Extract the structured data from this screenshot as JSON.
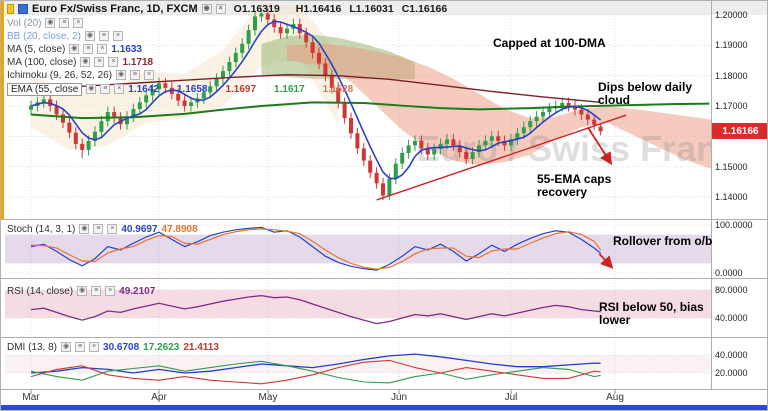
{
  "title_row": {
    "symbol_title": "Euro Fx/Swiss Franc, 1D, FXCM",
    "ohlc": {
      "o": "O1.16319",
      "h": "H1.16416",
      "l": "L1.16031",
      "c": "C1.16166"
    }
  },
  "ui": {
    "buttons": [
      "◉",
      "≡",
      "×"
    ]
  },
  "legend": {
    "vol": {
      "label": "Vol (20)"
    },
    "bb": {
      "label": "BB (20, close, 2)"
    },
    "ma5": {
      "label": "MA (5, close)",
      "value": "1.1633"
    },
    "ma100": {
      "label": "MA (100, close)",
      "value": "1.1718"
    },
    "ichimoku": {
      "label": "Ichimoku (9, 26, 52, 26)",
      "values": [
        "1.1658",
        "1.1697",
        "1.1617",
        "1.1628"
      ]
    },
    "ema55": {
      "label": "EMA (55, close",
      "value": "1.1642"
    }
  },
  "panels": {
    "stoch": {
      "label": "Stoch (14, 3, 1)",
      "values": [
        "40.9697",
        "47.8908"
      ],
      "axis": [
        "100.0000",
        "0.0000"
      ]
    },
    "rsi": {
      "label": "RSI (14, close)",
      "values": [
        "49.2107"
      ],
      "axis": [
        "80.0000",
        "40.0000"
      ]
    },
    "dmi": {
      "label": "DMI (13, 8)",
      "values": [
        "30.6708",
        "17.2623",
        "21.4113"
      ],
      "axis": [
        "40.0000",
        "20.0000"
      ]
    }
  },
  "price_axis": {
    "labels": [
      "1.20000",
      "1.19000",
      "1.18000",
      "1.17000",
      "1.16000",
      "1.15000",
      "1.14000"
    ],
    "values": [
      1.2,
      1.19,
      1.18,
      1.17,
      1.16,
      1.15,
      1.14
    ],
    "last_price": "1.16166"
  },
  "time_axis": {
    "months": [
      "Mar",
      "Apr",
      "May",
      "Jun",
      "Jul",
      "Aug"
    ]
  },
  "watermark": "Euro / Swiss Franc",
  "annotations": [
    {
      "text": "Capped at 100-DMA"
    },
    {
      "text": "Dips below daily cloud"
    },
    {
      "text": "55-EMA caps recovery"
    },
    {
      "text": "Rollover from o/b"
    },
    {
      "text": "RSI below 50, bias lower"
    }
  ],
  "colors": {
    "up": "#2e9e4a",
    "down": "#d23535",
    "ma5": "#2743c7",
    "ma100": "#7a1f2b",
    "senkou": "#1d7a1d",
    "trend": "#cc2222",
    "stoch_k": "#2743c7",
    "stoch_d": "#e8742c",
    "rsi": "#7b2d8b",
    "adx": "#2140c8",
    "pdi": "#2e9e4a",
    "mdi": "#d23535",
    "badge": "#d92b2b",
    "bottom_bar": "#2a49d6",
    "left_strip": "#f0a500",
    "stoch_band": "rgba(186,156,206,0.38)",
    "rsi_band": "rgba(233,178,190,0.45)",
    "dmi_band": "rgba(235,205,210,0.28)",
    "cloud_pink_fill": "rgba(238,152,126,0.5)",
    "cloud_green_fill": "rgba(148,176,108,0.5)",
    "bb_fill": "rgba(243,226,198,0.45)",
    "grid": "#dcdcdc",
    "val_blue": "#2743c7",
    "val_red": "#c0392b",
    "val_green": "#2e9e4a",
    "val_salmon": "#e07050",
    "val_purple": "#7b2d8b",
    "val_orange": "#e8742c",
    "val_maroon": "#8b2635"
  },
  "chart_data": {
    "type": "candlestick",
    "title": "Euro Fx/Swiss Franc, 1D, FXCM",
    "ylim": [
      1.14,
      1.2
    ],
    "x_months": [
      "Mar",
      "Apr",
      "May",
      "Jun",
      "Jul",
      "Aug"
    ],
    "candles": [
      [
        1.1688,
        1.1718,
        1.167,
        1.17
      ],
      [
        1.17,
        1.173,
        1.1682,
        1.1712
      ],
      [
        1.1712,
        1.174,
        1.1694,
        1.1722
      ],
      [
        1.1722,
        1.174,
        1.1682,
        1.17
      ],
      [
        1.17,
        1.1718,
        1.1654,
        1.1672
      ],
      [
        1.1672,
        1.169,
        1.1627,
        1.1645
      ],
      [
        1.1645,
        1.1663,
        1.1594,
        1.1612
      ],
      [
        1.1612,
        1.163,
        1.1557,
        1.1575
      ],
      [
        1.1575,
        1.1593,
        1.1528,
        1.1555
      ],
      [
        1.1555,
        1.1603,
        1.1537,
        1.1585
      ],
      [
        1.1585,
        1.1633,
        1.1567,
        1.1615
      ],
      [
        1.1615,
        1.1668,
        1.1597,
        1.165
      ],
      [
        1.165,
        1.1698,
        1.1632,
        1.168
      ],
      [
        1.168,
        1.1698,
        1.1644,
        1.1662
      ],
      [
        1.1662,
        1.168,
        1.1622,
        1.164
      ],
      [
        1.164,
        1.1683,
        1.1622,
        1.1665
      ],
      [
        1.1665,
        1.1708,
        1.1647,
        1.169
      ],
      [
        1.169,
        1.173,
        1.1672,
        1.1712
      ],
      [
        1.1712,
        1.1753,
        1.1694,
        1.1735
      ],
      [
        1.1735,
        1.1773,
        1.1717,
        1.1755
      ],
      [
        1.1755,
        1.1793,
        1.1737,
        1.1775
      ],
      [
        1.1775,
        1.1793,
        1.1742,
        1.176
      ],
      [
        1.176,
        1.1778,
        1.1722,
        1.174
      ],
      [
        1.174,
        1.1758,
        1.17,
        1.1718
      ],
      [
        1.1718,
        1.1736,
        1.1682,
        1.17
      ],
      [
        1.17,
        1.173,
        1.1682,
        1.1712
      ],
      [
        1.1712,
        1.1743,
        1.1694,
        1.1725
      ],
      [
        1.1725,
        1.1763,
        1.1707,
        1.1745
      ],
      [
        1.1745,
        1.1783,
        1.1727,
        1.1765
      ],
      [
        1.1765,
        1.1808,
        1.1747,
        1.179
      ],
      [
        1.179,
        1.1833,
        1.1772,
        1.1815
      ],
      [
        1.1815,
        1.1863,
        1.1797,
        1.1845
      ],
      [
        1.1845,
        1.1893,
        1.1827,
        1.1875
      ],
      [
        1.1875,
        1.1923,
        1.1857,
        1.1905
      ],
      [
        1.1905,
        1.1968,
        1.1887,
        1.195
      ],
      [
        1.195,
        1.2013,
        1.1932,
        1.1995
      ],
      [
        1.1995,
        1.2015,
        1.1977,
        1.2005
      ],
      [
        1.2005,
        1.2023,
        1.1967,
        1.1985
      ],
      [
        1.1985,
        1.2003,
        1.1942,
        1.196
      ],
      [
        1.196,
        1.1978,
        1.1922,
        1.194
      ],
      [
        1.194,
        1.1973,
        1.1922,
        1.1955
      ],
      [
        1.1955,
        1.1988,
        1.1937,
        1.197
      ],
      [
        1.197,
        1.1988,
        1.1922,
        1.194
      ],
      [
        1.194,
        1.1958,
        1.1892,
        1.191
      ],
      [
        1.191,
        1.1928,
        1.1857,
        1.1875
      ],
      [
        1.1875,
        1.1893,
        1.1822,
        1.184
      ],
      [
        1.184,
        1.1858,
        1.1782,
        1.18
      ],
      [
        1.18,
        1.1818,
        1.1742,
        1.176
      ],
      [
        1.176,
        1.1778,
        1.1692,
        1.171
      ],
      [
        1.171,
        1.1728,
        1.1642,
        1.166
      ],
      [
        1.166,
        1.1678,
        1.1592,
        1.161
      ],
      [
        1.161,
        1.1628,
        1.1542,
        1.156
      ],
      [
        1.156,
        1.1578,
        1.1502,
        1.152
      ],
      [
        1.152,
        1.1538,
        1.1462,
        1.148
      ],
      [
        1.148,
        1.1498,
        1.1427,
        1.1445
      ],
      [
        1.1445,
        1.1463,
        1.139,
        1.1405
      ],
      [
        1.1405,
        1.1478,
        1.139,
        1.146
      ],
      [
        1.146,
        1.1528,
        1.1442,
        1.151
      ],
      [
        1.151,
        1.1563,
        1.1492,
        1.1545
      ],
      [
        1.1545,
        1.1588,
        1.1527,
        1.157
      ],
      [
        1.157,
        1.1603,
        1.1552,
        1.1585
      ],
      [
        1.1585,
        1.1603,
        1.1542,
        1.156
      ],
      [
        1.156,
        1.1578,
        1.1522,
        1.154
      ],
      [
        1.154,
        1.1576,
        1.1522,
        1.1558
      ],
      [
        1.1558,
        1.1593,
        1.154,
        1.1575
      ],
      [
        1.1575,
        1.1608,
        1.1557,
        1.159
      ],
      [
        1.159,
        1.1608,
        1.1552,
        1.157
      ],
      [
        1.157,
        1.1588,
        1.153,
        1.1548
      ],
      [
        1.1548,
        1.1566,
        1.1507,
        1.1525
      ],
      [
        1.1525,
        1.1566,
        1.1507,
        1.1548
      ],
      [
        1.1548,
        1.1588,
        1.153,
        1.157
      ],
      [
        1.157,
        1.1603,
        1.1552,
        1.1585
      ],
      [
        1.1585,
        1.1618,
        1.1567,
        1.16
      ],
      [
        1.16,
        1.1618,
        1.1567,
        1.1585
      ],
      [
        1.1585,
        1.1603,
        1.1552,
        1.157
      ],
      [
        1.157,
        1.1608,
        1.1552,
        1.159
      ],
      [
        1.159,
        1.1628,
        1.1572,
        1.161
      ],
      [
        1.161,
        1.1648,
        1.1592,
        1.163
      ],
      [
        1.163,
        1.1668,
        1.1612,
        1.165
      ],
      [
        1.165,
        1.1683,
        1.1632,
        1.1665
      ],
      [
        1.1665,
        1.1698,
        1.1647,
        1.168
      ],
      [
        1.168,
        1.171,
        1.1662,
        1.1692
      ],
      [
        1.1692,
        1.1718,
        1.1674,
        1.17
      ],
      [
        1.17,
        1.1728,
        1.1682,
        1.171
      ],
      [
        1.171,
        1.1728,
        1.1682,
        1.17
      ],
      [
        1.17,
        1.1718,
        1.167,
        1.1688
      ],
      [
        1.1688,
        1.1706,
        1.1654,
        1.1672
      ],
      [
        1.1672,
        1.169,
        1.1637,
        1.1655
      ],
      [
        1.1655,
        1.1673,
        1.162,
        1.1638
      ],
      [
        1.16319,
        1.16416,
        1.16031,
        1.16166
      ]
    ],
    "ma100_keypoints": [
      [
        0,
        1.1755
      ],
      [
        8,
        1.1765
      ],
      [
        16,
        1.1775
      ],
      [
        24,
        1.1785
      ],
      [
        32,
        1.1795
      ],
      [
        40,
        1.1803
      ],
      [
        48,
        1.18
      ],
      [
        56,
        1.1788
      ],
      [
        64,
        1.1768
      ],
      [
        72,
        1.1748
      ],
      [
        80,
        1.173
      ],
      [
        89,
        1.1712
      ]
    ],
    "senkou_b_keypoints": [
      [
        0,
        1.1672
      ],
      [
        8,
        1.166
      ],
      [
        16,
        1.1663
      ],
      [
        24,
        1.1674
      ],
      [
        30,
        1.1688
      ],
      [
        36,
        1.17
      ],
      [
        44,
        1.1712
      ],
      [
        52,
        1.171
      ],
      [
        58,
        1.1701
      ],
      [
        64,
        1.1693
      ],
      [
        70,
        1.1689
      ],
      [
        78,
        1.1693
      ],
      [
        84,
        1.1698
      ],
      [
        92,
        1.1702
      ],
      [
        100,
        1.1706
      ],
      [
        106,
        1.1708
      ]
    ],
    "cloud_green": [
      [
        36,
        1.1905,
        1.18
      ],
      [
        40,
        1.193,
        1.1795
      ],
      [
        44,
        1.1935,
        1.179
      ],
      [
        48,
        1.1925,
        1.179
      ],
      [
        52,
        1.1905,
        1.1788
      ],
      [
        56,
        1.188,
        1.1788
      ],
      [
        60,
        1.1845,
        1.1788
      ]
    ],
    "cloud_pink": [
      [
        40,
        1.19,
        1.185
      ],
      [
        46,
        1.1905,
        1.183
      ],
      [
        50,
        1.1895,
        1.178
      ],
      [
        54,
        1.188,
        1.17
      ],
      [
        58,
        1.186,
        1.162
      ],
      [
        62,
        1.183,
        1.156
      ],
      [
        66,
        1.179,
        1.152
      ],
      [
        70,
        1.174,
        1.1505
      ],
      [
        74,
        1.169,
        1.1515
      ],
      [
        78,
        1.166,
        1.154
      ],
      [
        82,
        1.1665,
        1.159
      ],
      [
        86,
        1.169,
        1.163
      ],
      [
        90,
        1.17,
        1.1645
      ],
      [
        96,
        1.1685,
        1.1585
      ],
      [
        102,
        1.1668,
        1.1525
      ],
      [
        108,
        1.165,
        1.148
      ]
    ],
    "bb_band": [
      [
        0,
        1.1795,
        1.163
      ],
      [
        6,
        1.176,
        1.1555
      ],
      [
        12,
        1.1755,
        1.157
      ],
      [
        18,
        1.1815,
        1.1645
      ],
      [
        24,
        1.1805,
        1.166
      ],
      [
        30,
        1.1885,
        1.17
      ],
      [
        36,
        1.204,
        1.183
      ],
      [
        42,
        1.203,
        1.186
      ],
      [
        48,
        1.188,
        1.164
      ]
    ],
    "trendline": [
      [
        54,
        1.139
      ],
      [
        93,
        1.167
      ]
    ],
    "arrows": {
      "main": {
        "from": [
          87,
          1.163
        ],
        "to": [
          90.5,
          1.1515
        ]
      },
      "stoch": {
        "from": [
          88.8,
          40
        ],
        "to": [
          90.6,
          14
        ]
      }
    },
    "stoch": {
      "step": 2,
      "range": [
        0,
        100
      ],
      "ob_os_band": [
        20,
        80
      ],
      "k": [
        55,
        60,
        45,
        28,
        15,
        30,
        55,
        48,
        62,
        75,
        85,
        70,
        55,
        65,
        78,
        85,
        90,
        93,
        95,
        85,
        88,
        75,
        55,
        35,
        22,
        14,
        9,
        6,
        18,
        35,
        55,
        48,
        60,
        45,
        25,
        40,
        58,
        45,
        60,
        72,
        82,
        88,
        85,
        70,
        52,
        41
      ],
      "d": [
        58,
        57,
        52,
        38,
        25,
        24,
        42,
        50,
        55,
        68,
        78,
        76,
        62,
        60,
        70,
        80,
        86,
        90,
        92,
        90,
        87,
        82,
        66,
        48,
        32,
        20,
        12,
        8,
        12,
        24,
        40,
        50,
        52,
        52,
        35,
        32,
        46,
        50,
        50,
        62,
        73,
        82,
        86,
        80,
        66,
        48
      ]
    },
    "rsi": {
      "step": 2,
      "band": [
        40,
        80
      ],
      "values": [
        52,
        54,
        48,
        42,
        37,
        42,
        50,
        48,
        53,
        57,
        61,
        57,
        53,
        56,
        60,
        64,
        67,
        70,
        72,
        69,
        70,
        66,
        60,
        54,
        48,
        42,
        37,
        32,
        35,
        40,
        45,
        43,
        46,
        42,
        38,
        42,
        46,
        43,
        47,
        51,
        55,
        58,
        56,
        52,
        50,
        49
      ]
    },
    "dmi": {
      "step": 4,
      "band": [
        20,
        40
      ],
      "adx": [
        20,
        22,
        26,
        24,
        20,
        24,
        20,
        22,
        26,
        30,
        28,
        26,
        30,
        35,
        39,
        41,
        38,
        34,
        30,
        27,
        27,
        29,
        31,
        30.7
      ],
      "plus_di": [
        22,
        16,
        12,
        22,
        25,
        28,
        22,
        26,
        30,
        33,
        28,
        22,
        15,
        10,
        9,
        16,
        20,
        13,
        18,
        22,
        26,
        24,
        16,
        17.3
      ],
      "minus_di": [
        16,
        24,
        28,
        18,
        14,
        12,
        16,
        12,
        10,
        8,
        12,
        18,
        26,
        32,
        34,
        26,
        20,
        26,
        22,
        18,
        14,
        14,
        22,
        21.4
      ]
    }
  }
}
